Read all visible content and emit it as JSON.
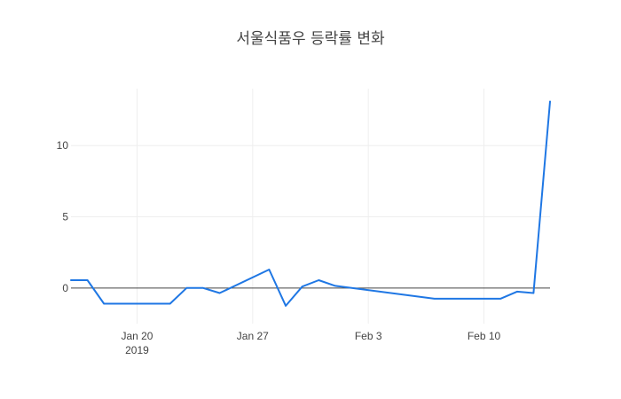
{
  "chart_data": {
    "type": "line",
    "title": "서울식품우 등락률 변화",
    "xlabel": "",
    "ylabel": "",
    "x_range": [
      "2019-01-16",
      "2019-02-14"
    ],
    "y_range": [
      -2.5,
      14
    ],
    "x_ticks": [
      {
        "date": "2019-01-20",
        "label": "Jan 20",
        "sublabel": "2019"
      },
      {
        "date": "2019-01-27",
        "label": "Jan 27",
        "sublabel": ""
      },
      {
        "date": "2019-02-03",
        "label": "Feb 3",
        "sublabel": ""
      },
      {
        "date": "2019-02-10",
        "label": "Feb 10",
        "sublabel": ""
      }
    ],
    "y_ticks": [
      0,
      5,
      10
    ],
    "grid": true,
    "zero_line": true,
    "color": "#1f77e4",
    "series": [
      {
        "name": "",
        "x": [
          "2019-01-16",
          "2019-01-17",
          "2019-01-18",
          "2019-01-21",
          "2019-01-22",
          "2019-01-23",
          "2019-01-24",
          "2019-01-25",
          "2019-01-28",
          "2019-01-29",
          "2019-01-30",
          "2019-01-31",
          "2019-02-01",
          "2019-02-07",
          "2019-02-08",
          "2019-02-11",
          "2019-02-12",
          "2019-02-13",
          "2019-02-14"
        ],
        "y": [
          0.55,
          0.55,
          -1.1,
          -1.1,
          -1.1,
          0.0,
          0.0,
          -0.35,
          1.3,
          -1.25,
          0.1,
          0.55,
          0.15,
          -0.75,
          -0.75,
          -0.75,
          -0.25,
          -0.35,
          13.1
        ]
      }
    ]
  }
}
